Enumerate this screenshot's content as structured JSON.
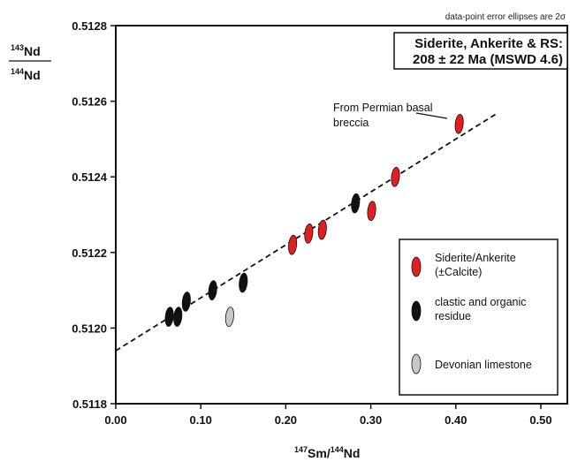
{
  "chart_data": {
    "type": "scatter",
    "xlabel": "147Sm/144Nd",
    "xlabel_parts": {
      "sup1": "147",
      "m1": "Sm/",
      "sup2": "144",
      "m2": "Nd"
    },
    "ylabel_parts": {
      "top_sup": "143",
      "top_m": "Nd",
      "bottom_sup": "144",
      "bottom_m": "Nd"
    },
    "xlim": [
      0.0,
      0.55
    ],
    "ylim": [
      0.5118,
      0.5128
    ],
    "x_ticks": [
      "0.00",
      "0.10",
      "0.20",
      "0.30",
      "0.40",
      "0.50"
    ],
    "y_ticks": [
      "0.5118",
      "0.5120",
      "0.5122",
      "0.5124",
      "0.5126",
      "0.5128"
    ],
    "error_note": "data-point error ellipses are 2σ",
    "age_box": {
      "line1": "Siderite, Ankerite & RS:",
      "line2": "208 ± 22 Ma (MSWD 4.6)"
    },
    "annotation": {
      "line1": "From Permian basal",
      "line2": "breccia"
    },
    "isochron": {
      "x": [
        0.0,
        0.45
      ],
      "y": [
        0.51194,
        0.51257
      ]
    },
    "legend_position": "lower-right",
    "series": [
      {
        "name": "Siderite/Ankerite (±Calcite)",
        "label_lines": [
          "Siderite/Ankerite",
          "(±Calcite)"
        ],
        "color": "#e02020",
        "points": [
          {
            "x": 0.208,
            "y": 0.51222
          },
          {
            "x": 0.227,
            "y": 0.51225
          },
          {
            "x": 0.243,
            "y": 0.51226
          },
          {
            "x": 0.301,
            "y": 0.51231
          },
          {
            "x": 0.329,
            "y": 0.5124
          },
          {
            "x": 0.404,
            "y": 0.51254
          }
        ]
      },
      {
        "name": "clastic and organic residue",
        "label_lines": [
          "clastic and organic",
          "residue"
        ],
        "color": "#111111",
        "points": [
          {
            "x": 0.063,
            "y": 0.51203
          },
          {
            "x": 0.073,
            "y": 0.51203
          },
          {
            "x": 0.083,
            "y": 0.51207
          },
          {
            "x": 0.114,
            "y": 0.5121
          },
          {
            "x": 0.15,
            "y": 0.51212
          },
          {
            "x": 0.282,
            "y": 0.51233
          }
        ]
      },
      {
        "name": "Devonian limestone",
        "label_lines": [
          "Devonian limestone"
        ],
        "color": "#c8c8c8",
        "points": [
          {
            "x": 0.134,
            "y": 0.51203
          }
        ]
      }
    ]
  }
}
